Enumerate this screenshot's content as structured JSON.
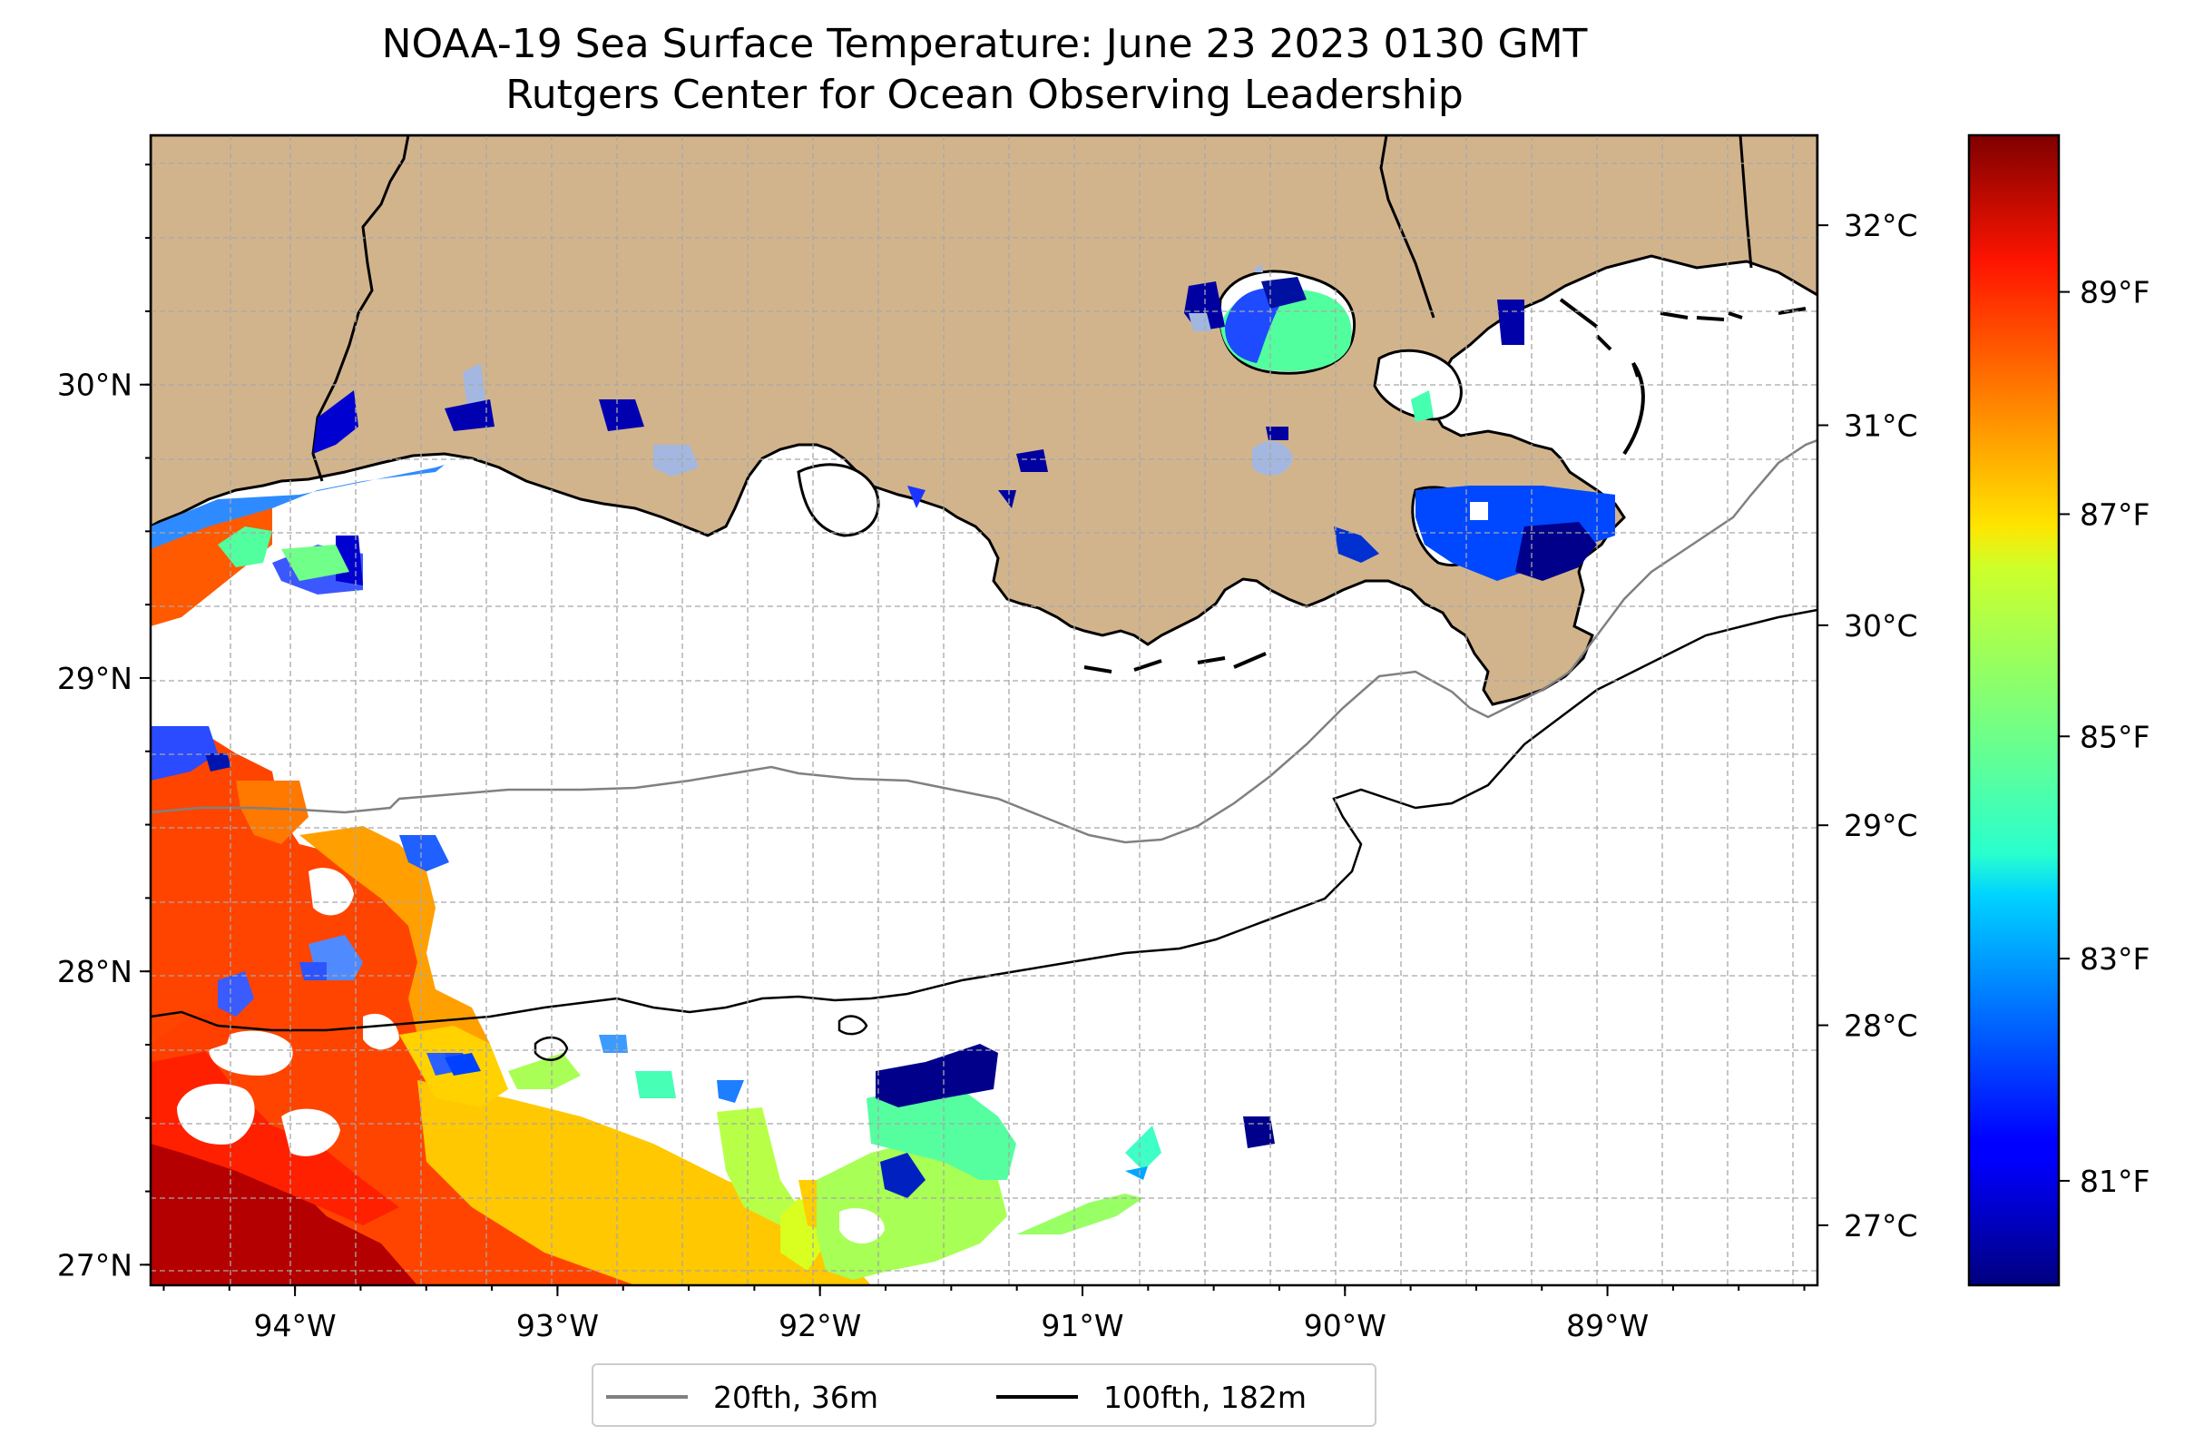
{
  "title_line1": "NOAA-19 Sea Surface Temperature: June 23 2023 0130 GMT",
  "title_line2": "Rutgers Center for Ocean Observing Leadership",
  "map": {
    "lon_range": [
      -94.55,
      -88.2
    ],
    "lat_range": [
      26.93,
      30.85
    ],
    "x_ticks": [
      {
        "lon": -94,
        "label": "94°W"
      },
      {
        "lon": -93,
        "label": "93°W"
      },
      {
        "lon": -92,
        "label": "92°W"
      },
      {
        "lon": -91,
        "label": "91°W"
      },
      {
        "lon": -90,
        "label": "90°W"
      },
      {
        "lon": -89,
        "label": "89°W"
      }
    ],
    "y_ticks": [
      {
        "lat": 30,
        "label": "30°N"
      },
      {
        "lat": 29,
        "label": "29°N"
      },
      {
        "lat": 28,
        "label": "28°N"
      },
      {
        "lat": 27,
        "label": "27°N"
      }
    ],
    "land_color": "#d2b48c",
    "gridlines": true
  },
  "colorbar": {
    "colormap": "jet",
    "celsius_range": [
      26.7,
      32.45
    ],
    "celsius_ticks": [
      {
        "value": 27,
        "label": "27°C"
      },
      {
        "value": 28,
        "label": "28°C"
      },
      {
        "value": 29,
        "label": "29°C"
      },
      {
        "value": 30,
        "label": "30°C"
      },
      {
        "value": 31,
        "label": "31°C"
      },
      {
        "value": 32,
        "label": "32°C"
      }
    ],
    "fahrenheit_ticks": [
      {
        "value": 81,
        "label": "81°F"
      },
      {
        "value": 83,
        "label": "83°F"
      },
      {
        "value": 85,
        "label": "85°F"
      },
      {
        "value": 87,
        "label": "87°F"
      },
      {
        "value": 89,
        "label": "89°F"
      }
    ]
  },
  "legend": {
    "items": [
      {
        "label": "20fth, 36m",
        "color": "#808080"
      },
      {
        "label": "100fth, 182m",
        "color": "#000000"
      }
    ]
  }
}
